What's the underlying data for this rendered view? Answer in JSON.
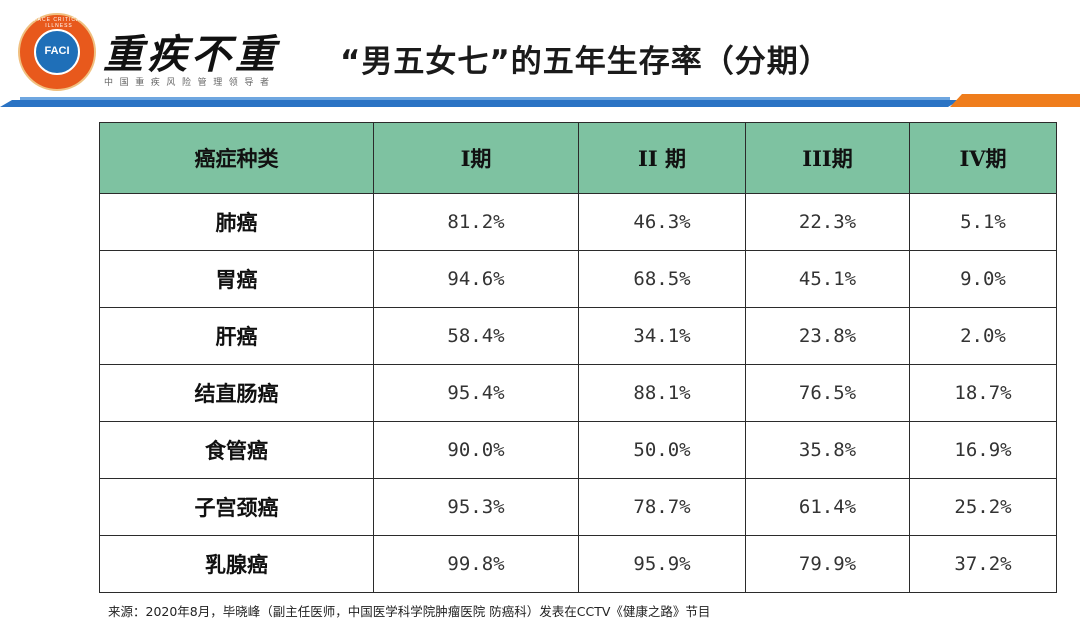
{
  "header": {
    "logo_text": "FACI",
    "logo_ring_text": "FACE CRITICAL ILLNESS",
    "brand_name": "重疾不重",
    "brand_tagline": "中国重疾风险管理领导者",
    "title": "“男五女七”的五年生存率（分期）"
  },
  "colors": {
    "header_fill": "#7ec2a1",
    "rule_blue": "#2a73c4",
    "rule_orange": "#ef7d1c",
    "logo_orange": "#e8591c",
    "logo_blue": "#1f6fb8"
  },
  "table": {
    "headers": [
      "癌症种类",
      "I期",
      "II 期",
      "III期",
      "IV期"
    ],
    "rows": [
      [
        "肺癌",
        "81.2%",
        "46.3%",
        "22.3%",
        "5.1%"
      ],
      [
        "胃癌",
        "94.6%",
        "68.5%",
        "45.1%",
        "9.0%"
      ],
      [
        "肝癌",
        "58.4%",
        "34.1%",
        "23.8%",
        "2.0%"
      ],
      [
        "结直肠癌",
        "95.4%",
        "88.1%",
        "76.5%",
        "18.7%"
      ],
      [
        "食管癌",
        "90.0%",
        "50.0%",
        "35.8%",
        "16.9%"
      ],
      [
        "子宫颈癌",
        "95.3%",
        "78.7%",
        "61.4%",
        "25.2%"
      ],
      [
        "乳腺癌",
        "99.8%",
        "95.9%",
        "79.9%",
        "37.2%"
      ]
    ]
  },
  "source": "来源：2020年8月，毕晓峰（副主任医师，中国医学科学院肿瘤医院 防癌科）发表在CCTV《健康之路》节目"
}
